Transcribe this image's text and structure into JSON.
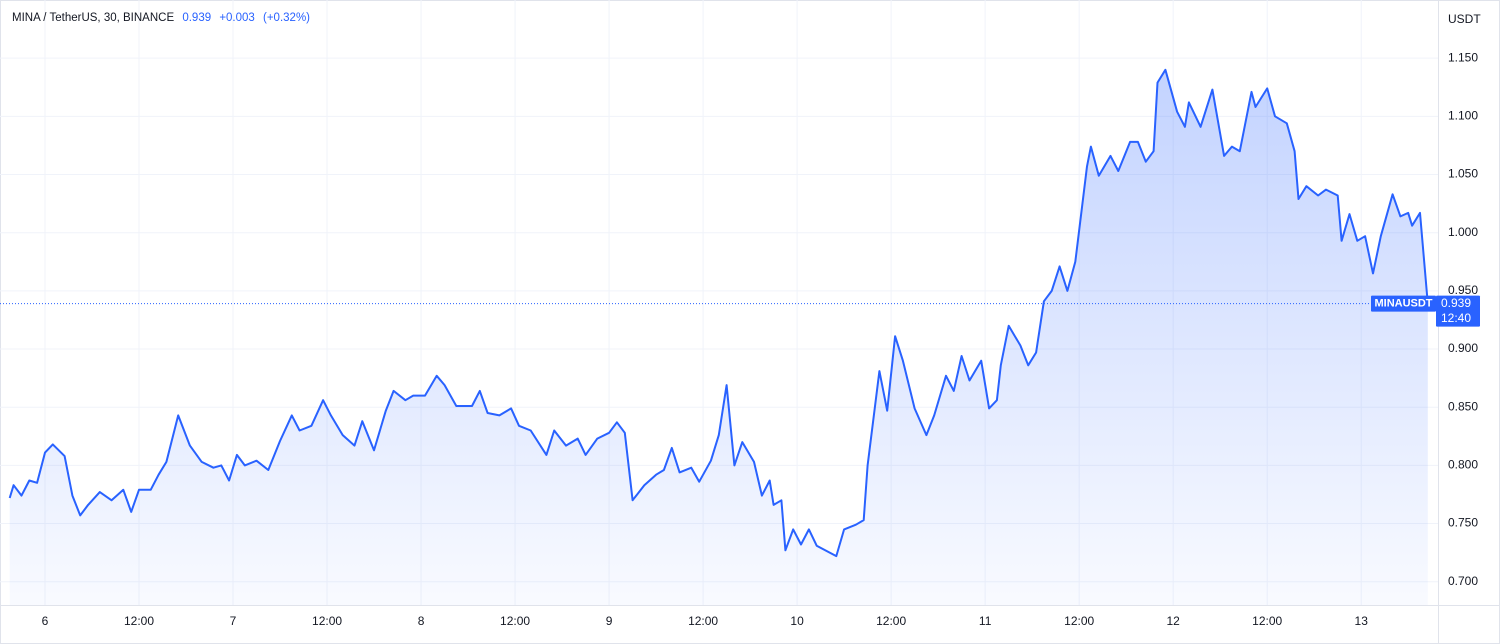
{
  "chart_data": {
    "type": "area",
    "title": "MINA / TetherUS, 30, BINANCE",
    "change": "+0.003",
    "change_pct": "(+0.32%)",
    "y_axis_label": "USDT",
    "symbol_tag": "MINAUSDT",
    "countdown": "12:40",
    "last_price": 0.939,
    "color": "#2962ff",
    "grid": true,
    "xlim": [
      -4.72,
      177.8
    ],
    "ylim": [
      0.68,
      1.2
    ],
    "xticks": [
      {
        "value": 0,
        "label": "6"
      },
      {
        "value": 12,
        "label": "12:00"
      },
      {
        "value": 24,
        "label": "7"
      },
      {
        "value": 36,
        "label": "12:00"
      },
      {
        "value": 48,
        "label": "8"
      },
      {
        "value": 60,
        "label": "12:00"
      },
      {
        "value": 72,
        "label": "9"
      },
      {
        "value": 84,
        "label": "12:00"
      },
      {
        "value": 96,
        "label": "10"
      },
      {
        "value": 108,
        "label": "12:00"
      },
      {
        "value": 120,
        "label": "11"
      },
      {
        "value": 132,
        "label": "12:00"
      },
      {
        "value": 144,
        "label": "12"
      },
      {
        "value": 156,
        "label": "12:00"
      },
      {
        "value": 168,
        "label": "13"
      }
    ],
    "yticks": [
      {
        "value": 0.7,
        "label": "0.700"
      },
      {
        "value": 0.75,
        "label": "0.750"
      },
      {
        "value": 0.8,
        "label": "0.800"
      },
      {
        "value": 0.85,
        "label": "0.850"
      },
      {
        "value": 0.9,
        "label": "0.900"
      },
      {
        "value": 0.95,
        "label": "0.950"
      },
      {
        "value": 1.0,
        "label": "1.000"
      },
      {
        "value": 1.05,
        "label": "1.050"
      },
      {
        "value": 1.1,
        "label": "1.100"
      },
      {
        "value": 1.15,
        "label": "1.150"
      }
    ],
    "x": [
      -4.5,
      -4,
      -3,
      -2,
      -1,
      0,
      1,
      2.5,
      3.5,
      4.5,
      5.5,
      7,
      8.5,
      10,
      11,
      12,
      13.5,
      14.5,
      15.5,
      17,
      18.5,
      20,
      21.5,
      22.5,
      23.5,
      24.5,
      25.5,
      27,
      28.5,
      30,
      31.5,
      32.5,
      34,
      35.5,
      36.5,
      38,
      39.5,
      40.5,
      42,
      43.5,
      44.5,
      46,
      47,
      48.5,
      50,
      51,
      52.5,
      54.5,
      55.5,
      56.5,
      58,
      59.5,
      60.5,
      62,
      64,
      65,
      66.5,
      68,
      69,
      70.5,
      72,
      73,
      74,
      75,
      76.5,
      78,
      79,
      80,
      81,
      82.5,
      83.5,
      85,
      86,
      87,
      88,
      89,
      90.5,
      91.5,
      92.5,
      93,
      94,
      94.5,
      95.5,
      96.5,
      97.5,
      98.5,
      101,
      102,
      103.5,
      104.5,
      105,
      106.5,
      107.5,
      108.5,
      109.5,
      111,
      112.5,
      113.5,
      115,
      116,
      117,
      118,
      119.5,
      120.5,
      121.5,
      122,
      123,
      124.5,
      125.5,
      126.5,
      127.5,
      128.5,
      129.5,
      130.5,
      131.5,
      133,
      133.5,
      134.5,
      136,
      137,
      138.5,
      139.5,
      140.5,
      141.5,
      142,
      143,
      144.5,
      145.5,
      146,
      147.5,
      149,
      150.5,
      151.5,
      152.5,
      154,
      154.5,
      156,
      157,
      158.5,
      159.5,
      160,
      161,
      162.5,
      163.5,
      165,
      165.5,
      166.5,
      167.5,
      168.5,
      169.5,
      170.5,
      172,
      173,
      174,
      174.5,
      175.5,
      176.5
    ],
    "values": [
      0.772,
      0.783,
      0.774,
      0.787,
      0.785,
      0.811,
      0.818,
      0.808,
      0.774,
      0.757,
      0.766,
      0.777,
      0.77,
      0.779,
      0.76,
      0.779,
      0.779,
      0.792,
      0.803,
      0.843,
      0.817,
      0.803,
      0.798,
      0.8,
      0.787,
      0.809,
      0.8,
      0.804,
      0.796,
      0.821,
      0.843,
      0.83,
      0.834,
      0.856,
      0.843,
      0.826,
      0.817,
      0.838,
      0.813,
      0.847,
      0.864,
      0.856,
      0.86,
      0.86,
      0.877,
      0.869,
      0.851,
      0.851,
      0.864,
      0.845,
      0.843,
      0.849,
      0.834,
      0.83,
      0.809,
      0.83,
      0.817,
      0.823,
      0.809,
      0.823,
      0.828,
      0.837,
      0.828,
      0.77,
      0.783,
      0.792,
      0.796,
      0.815,
      0.794,
      0.798,
      0.786,
      0.804,
      0.826,
      0.869,
      0.8,
      0.82,
      0.803,
      0.774,
      0.787,
      0.766,
      0.77,
      0.727,
      0.745,
      0.732,
      0.745,
      0.731,
      0.722,
      0.745,
      0.749,
      0.753,
      0.8,
      0.881,
      0.847,
      0.911,
      0.89,
      0.849,
      0.826,
      0.843,
      0.877,
      0.864,
      0.894,
      0.873,
      0.89,
      0.849,
      0.856,
      0.886,
      0.92,
      0.903,
      0.886,
      0.897,
      0.941,
      0.95,
      0.971,
      0.95,
      0.975,
      1.057,
      1.074,
      1.049,
      1.066,
      1.053,
      1.078,
      1.078,
      1.061,
      1.07,
      1.129,
      1.14,
      1.104,
      1.091,
      1.112,
      1.091,
      1.123,
      1.066,
      1.074,
      1.07,
      1.121,
      1.108,
      1.124,
      1.1,
      1.094,
      1.07,
      1.029,
      1.04,
      1.032,
      1.037,
      1.032,
      0.993,
      1.016,
      0.993,
      0.997,
      0.965,
      0.997,
      1.033,
      1.014,
      1.017,
      1.006,
      1.017,
      0.939
    ]
  }
}
